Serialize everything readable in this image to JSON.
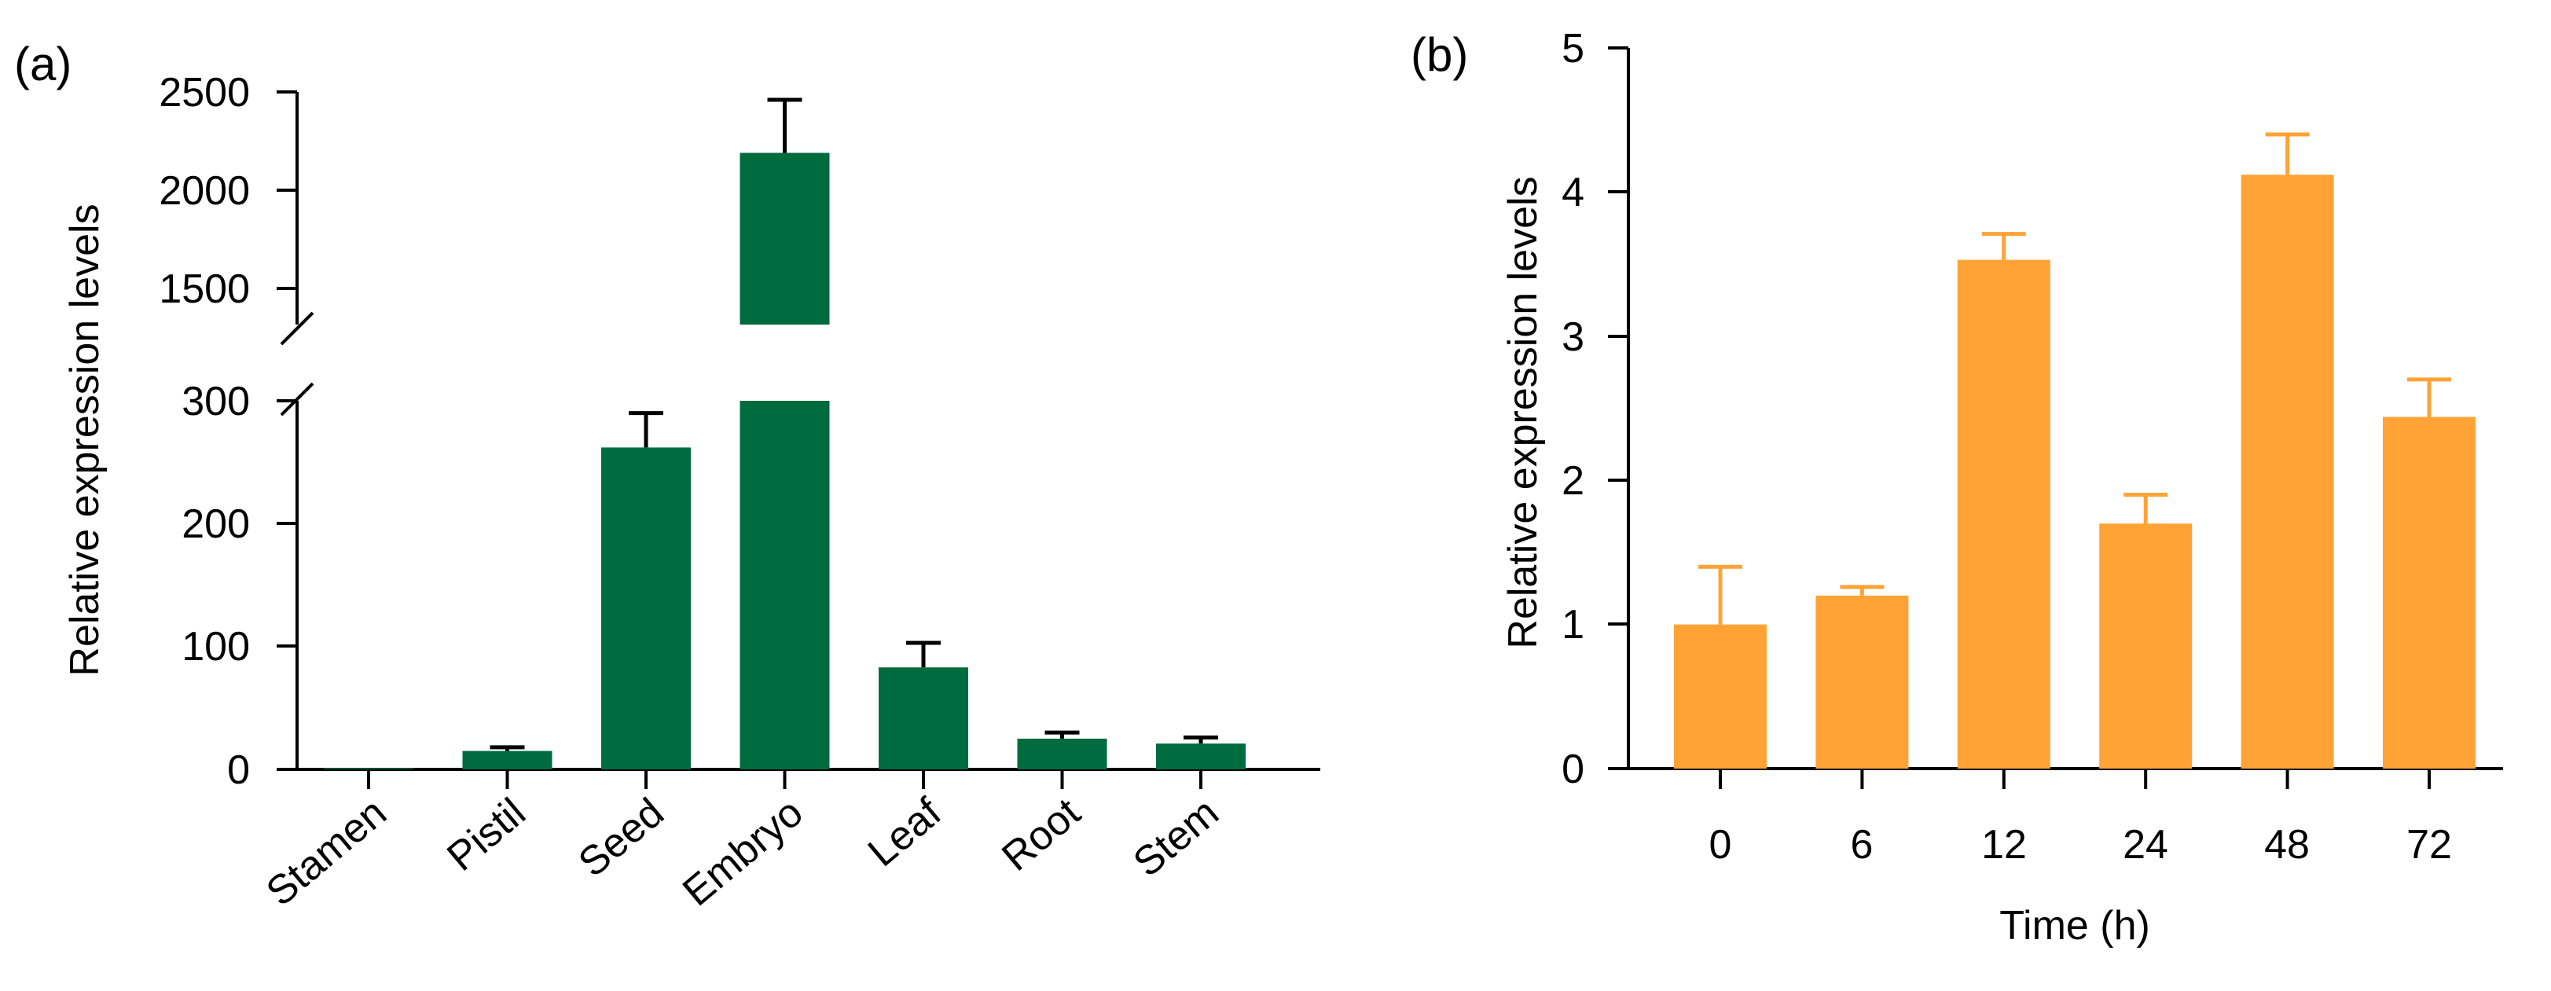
{
  "chart_data": [
    {
      "panel_label": "(a)",
      "type": "bar",
      "ylabel": "Relative expression levels",
      "xlabel": "",
      "color": "#006B3F",
      "error_color": "#000000",
      "categories": [
        "Stamen",
        "Pistil",
        "Seed",
        "Embryo",
        "Leaf",
        "Root",
        "Stem"
      ],
      "values": [
        1,
        15,
        262,
        2190,
        83,
        25,
        21
      ],
      "errors": [
        0.2,
        3,
        28,
        270,
        20,
        5,
        5
      ],
      "broken_axis": true,
      "ylim_lower": [
        0,
        300
      ],
      "ylim_upper": [
        1300,
        2500
      ],
      "yticks_lower": [
        "0",
        "100",
        "200",
        "300"
      ],
      "yticks_upper": [
        "1500",
        "2000",
        "2500"
      ]
    },
    {
      "panel_label": "(b)",
      "type": "bar",
      "ylabel": "Relative expression levels",
      "xlabel": "Time (h)",
      "color": "#FFA336",
      "error_color": "#FFA336",
      "categories": [
        "0",
        "6",
        "12",
        "24",
        "48",
        "72"
      ],
      "values": [
        1.0,
        1.2,
        3.53,
        1.7,
        4.12,
        2.44
      ],
      "errors": [
        0.4,
        0.06,
        0.18,
        0.2,
        0.28,
        0.26
      ],
      "ylim": [
        0,
        5
      ],
      "yticks": [
        "0",
        "1",
        "2",
        "3",
        "4",
        "5"
      ]
    }
  ]
}
